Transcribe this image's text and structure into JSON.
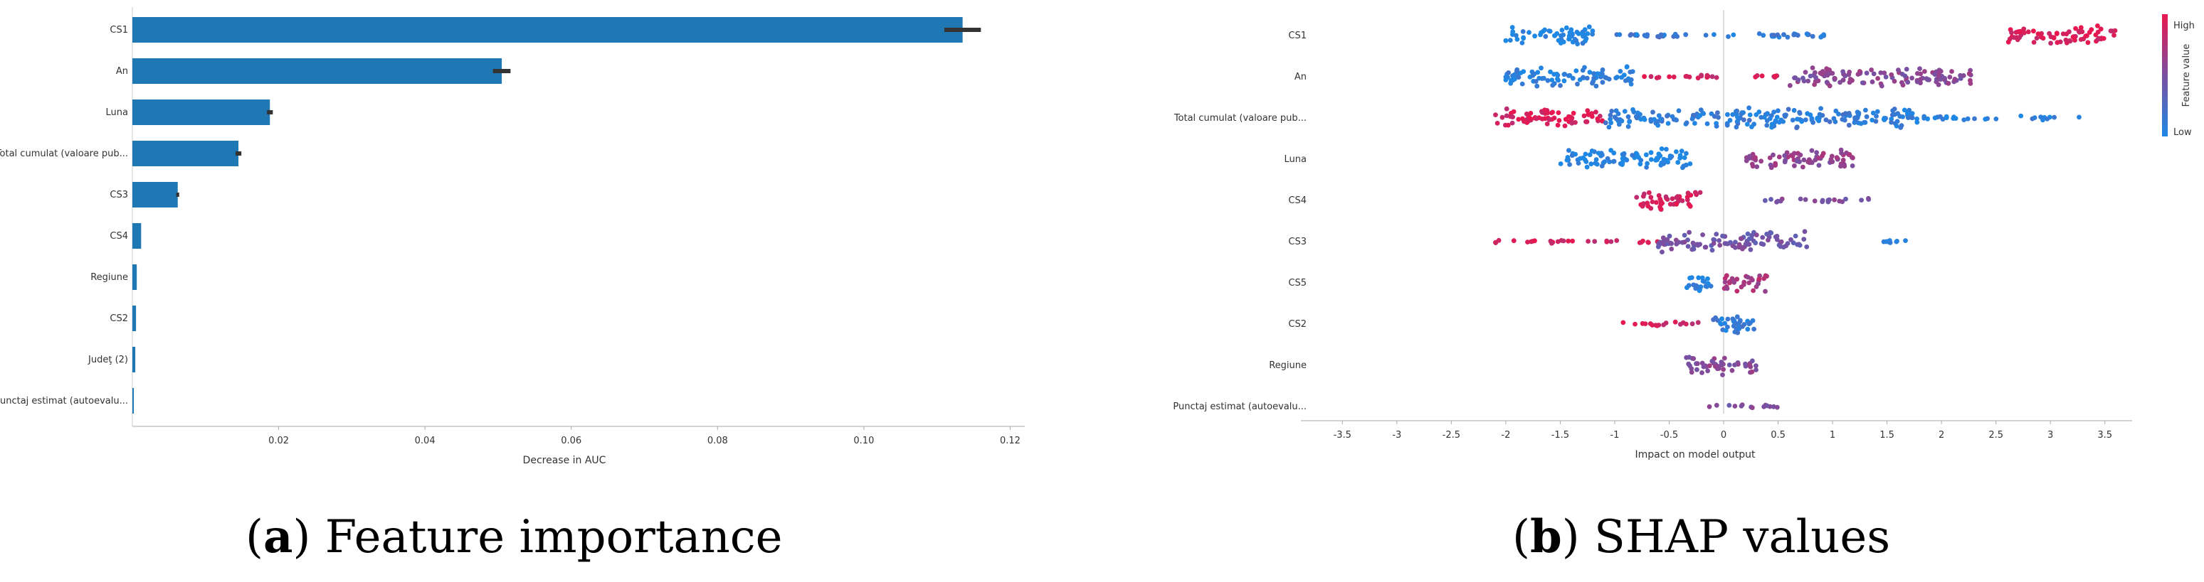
{
  "captions": {
    "a_letter": "a",
    "a_text": " Feature importance",
    "b_letter": "b",
    "b_text": " SHAP values"
  },
  "colors": {
    "bar": "#1f77b4",
    "error_bar": "#333333",
    "shap_high": "#e8174f",
    "shap_mid": "#7b4fa0",
    "shap_low": "#1e88e5"
  },
  "chart_data": [
    {
      "type": "bar",
      "orientation": "horizontal",
      "categories": [
        "CS1",
        "An",
        "Luna",
        "Total cumulat (valoare pub...",
        "CS3",
        "CS4",
        "Regiune",
        "CS2",
        "Judeţ (2)",
        "Punctaj estimat (autoevalu..."
      ],
      "values": [
        0.1135,
        0.0505,
        0.0188,
        0.0145,
        0.0062,
        0.0012,
        0.0006,
        0.0005,
        0.0004,
        0.0002
      ],
      "errors": [
        0.0025,
        0.0012,
        0.0004,
        0.0004,
        0.0002,
        0,
        0,
        0,
        0,
        0
      ],
      "xlabel": "Decrease in AUC",
      "xlim": [
        0,
        0.122
      ],
      "xticks": [
        0.02,
        0.04,
        0.06,
        0.08,
        0.1,
        0.12
      ],
      "xtick_labels": [
        "0.02",
        "0.04",
        "0.06",
        "0.08",
        "0.10",
        "0.12"
      ]
    },
    {
      "type": "scatter",
      "subtype": "beeswarm",
      "features": [
        "CS1",
        "An",
        "Total cumulat (valoare pub...",
        "Luna",
        "CS4",
        "CS3",
        "CS5",
        "CS2",
        "Regiune",
        "Punctaj estimat (autoevalu..."
      ],
      "distributions": [
        [
          {
            "lo": -2.0,
            "hi": -1.2,
            "c": 0,
            "dense": true
          },
          {
            "lo": -1.1,
            "hi": -0.4,
            "c": 0.15,
            "dense": false
          },
          {
            "lo": -0.8,
            "hi": 1.0,
            "c": 0.1,
            "dense": false
          },
          {
            "lo": 2.6,
            "hi": 3.6,
            "c": 0.95,
            "dense": true
          }
        ],
        [
          {
            "lo": -2.0,
            "hi": -0.8,
            "c": 0.05,
            "dense": true
          },
          {
            "lo": -0.8,
            "hi": 0.5,
            "c": 0.9,
            "dense": false
          },
          {
            "lo": 0.6,
            "hi": 2.3,
            "c": 0.55,
            "dense": true
          }
        ],
        [
          {
            "lo": -2.1,
            "hi": -1.1,
            "c": 0.92,
            "dense": true
          },
          {
            "lo": -1.1,
            "hi": 1.8,
            "c": 0.1,
            "dense": true
          },
          {
            "lo": 1.8,
            "hi": 3.3,
            "c": 0.05,
            "dense": false
          }
        ],
        [
          {
            "lo": -1.5,
            "hi": -0.3,
            "c": 0.02,
            "dense": true
          },
          {
            "lo": 0.2,
            "hi": 1.2,
            "c": 0.6,
            "dense": true
          }
        ],
        [
          {
            "lo": -0.8,
            "hi": -0.2,
            "c": 0.9,
            "dense": true
          },
          {
            "lo": 0.3,
            "hi": 1.4,
            "c": 0.5,
            "dense": false
          }
        ],
        [
          {
            "lo": -2.1,
            "hi": -0.6,
            "c": 0.9,
            "dense": false
          },
          {
            "lo": -0.6,
            "hi": 0.8,
            "c": 0.45,
            "dense": true
          },
          {
            "lo": 1.4,
            "hi": 1.7,
            "c": 0.02,
            "dense": false
          }
        ],
        [
          {
            "lo": -0.35,
            "hi": -0.1,
            "c": 0.02,
            "dense": true
          },
          {
            "lo": 0.0,
            "hi": 0.4,
            "c": 0.7,
            "dense": true
          }
        ],
        [
          {
            "lo": -1.0,
            "hi": -0.2,
            "c": 0.9,
            "dense": false
          },
          {
            "lo": -0.1,
            "hi": 0.3,
            "c": 0.1,
            "dense": true
          }
        ],
        [
          {
            "lo": -0.35,
            "hi": 0.3,
            "c": 0.55,
            "dense": true
          }
        ],
        [
          {
            "lo": -0.15,
            "hi": 0.5,
            "c": 0.5,
            "dense": false
          }
        ]
      ],
      "xlabel": "Impact on model output",
      "xlim": [
        -3.75,
        3.75
      ],
      "xticks": [
        -3.5,
        -3,
        -2.5,
        -2,
        -1.5,
        -1,
        -0.5,
        0,
        0.5,
        1,
        1.5,
        2,
        2.5,
        3,
        3.5
      ],
      "xtick_labels": [
        "-3.5",
        "-3",
        "-2.5",
        "-2",
        "-1.5",
        "-1",
        "-0.5",
        "0",
        "0.5",
        "1",
        "1.5",
        "2",
        "2.5",
        "3",
        "3.5"
      ],
      "colorbar": {
        "label": "Feature value",
        "high": "High",
        "low": "Low"
      }
    }
  ]
}
